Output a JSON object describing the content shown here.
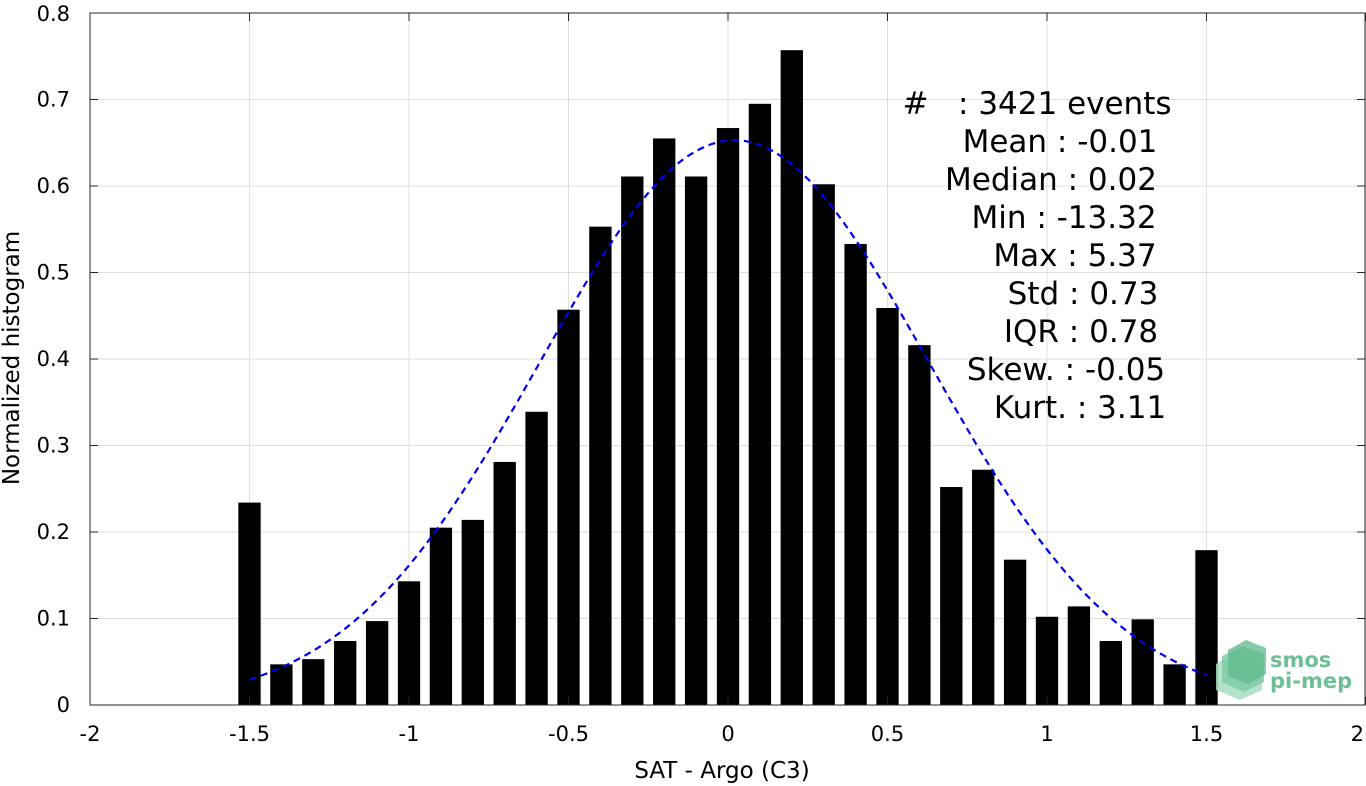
{
  "chart_data": {
    "type": "bar",
    "xlabel": "SAT - Argo (C3)",
    "ylabel": "Normalized histogram",
    "xlim": [
      -2,
      2
    ],
    "ylim": [
      0,
      0.8
    ],
    "grid": true,
    "x_ticks": [
      -2,
      -1.5,
      -1,
      -0.5,
      0,
      0.5,
      1,
      1.5,
      2
    ],
    "x_tick_labels": [
      "-2",
      "-1.5",
      "-1",
      "-0.5",
      "0",
      "0.5",
      "1",
      "1.5",
      "2"
    ],
    "y_ticks": [
      0,
      0.1,
      0.2,
      0.3,
      0.4,
      0.5,
      0.6,
      0.7,
      0.8
    ],
    "y_tick_labels": [
      "0",
      "0.1",
      "0.2",
      "0.3",
      "0.4",
      "0.5",
      "0.6",
      "0.7",
      "0.8"
    ],
    "bar_color": "#000000",
    "bins": [
      -1.5,
      -1.4,
      -1.3,
      -1.2,
      -1.1,
      -1.0,
      -0.9,
      -0.8,
      -0.7,
      -0.6,
      -0.5,
      -0.4,
      -0.3,
      -0.2,
      -0.1,
      0.0,
      0.1,
      0.2,
      0.3,
      0.4,
      0.5,
      0.6,
      0.7,
      0.8,
      0.9,
      1.0,
      1.1,
      1.2,
      1.3,
      1.4,
      1.5
    ],
    "values": [
      0.234,
      0.047,
      0.053,
      0.074,
      0.097,
      0.143,
      0.205,
      0.214,
      0.281,
      0.339,
      0.457,
      0.553,
      0.611,
      0.655,
      0.611,
      0.667,
      0.695,
      0.757,
      0.602,
      0.533,
      0.459,
      0.416,
      0.252,
      0.272,
      0.168,
      0.102,
      0.114,
      0.074,
      0.099,
      0.047,
      0.179
    ],
    "fit_curve": {
      "type": "gaussian",
      "mean": 0.02,
      "std": 0.61,
      "peak": 0.653,
      "x_range": [
        -1.5,
        1.5
      ],
      "color": "#0000ee",
      "dash": true
    },
    "stats": [
      {
        "text": "#   : 3421 events"
      },
      {
        "text": "Mean : -0.01"
      },
      {
        "text": "Median : 0.02"
      },
      {
        "text": "Min : -13.32"
      },
      {
        "text": "Max : 5.37"
      },
      {
        "text": "Std : 0.73"
      },
      {
        "text": "IQR : 0.78"
      },
      {
        "text": "Skew. : -0.05"
      },
      {
        "text": "Kurt. : 3.11"
      }
    ]
  },
  "logo": {
    "line1": "smos",
    "line2": "pi-mep",
    "color": "#6fbf96"
  }
}
